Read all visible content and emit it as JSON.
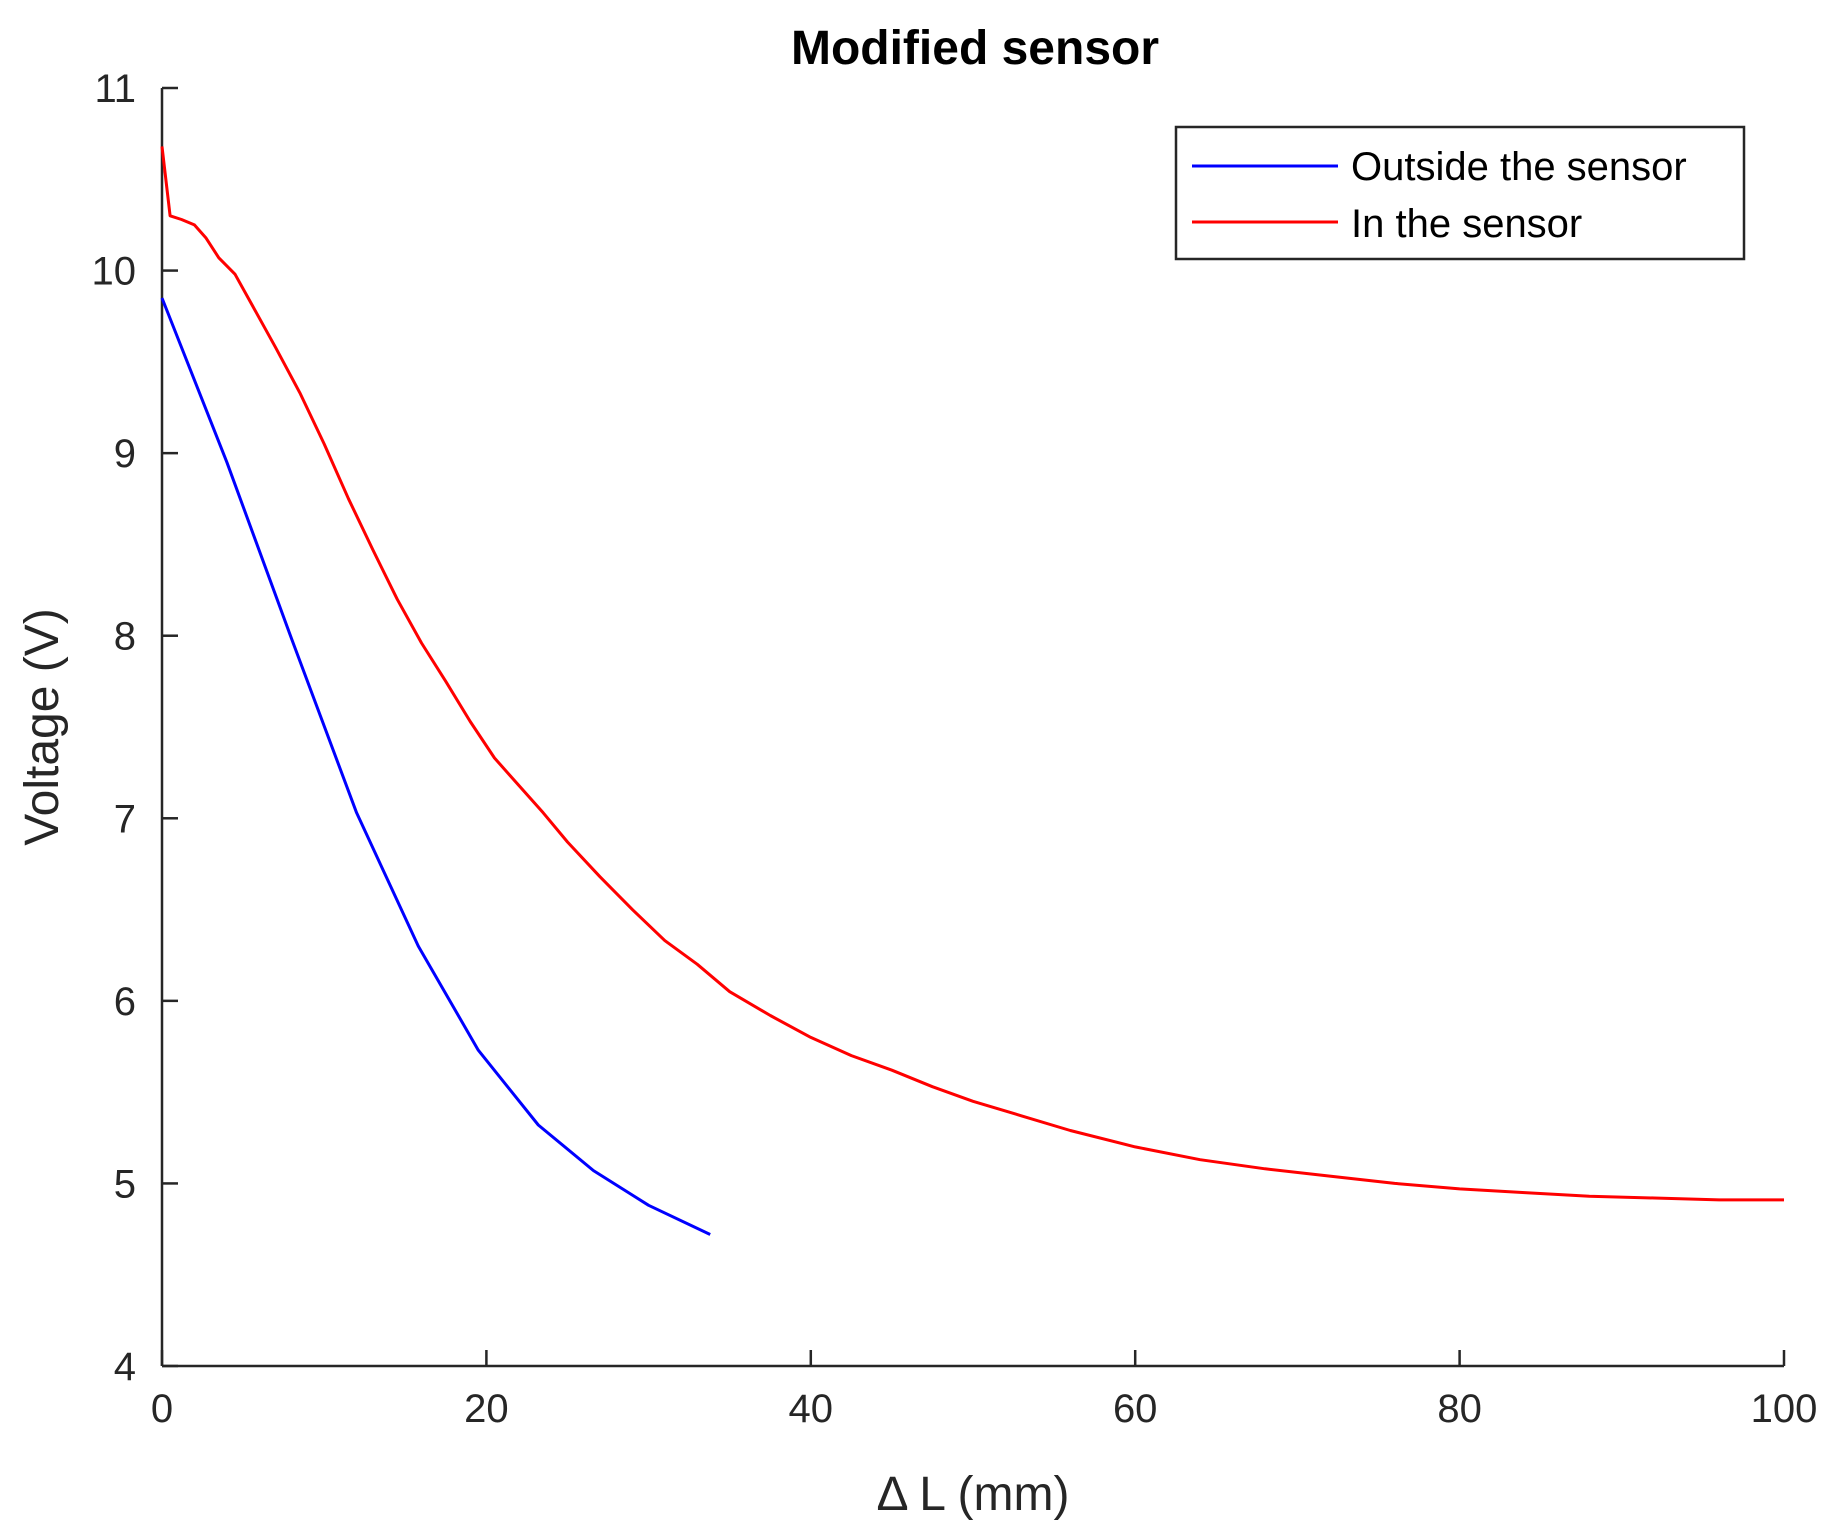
{
  "chart_data": {
    "type": "line",
    "title": "Modified sensor",
    "xlabel": "Δ L (mm)",
    "ylabel": "Voltage (V)",
    "xlim": [
      0,
      100
    ],
    "ylim": [
      4,
      11
    ],
    "xticks": [
      0,
      20,
      40,
      60,
      80,
      100
    ],
    "yticks": [
      4,
      5,
      6,
      7,
      8,
      9,
      10,
      11
    ],
    "grid": false,
    "legend_position": "top-right",
    "series": [
      {
        "name": "Outside the sensor",
        "color": "#0000ff",
        "x": [
          0,
          4,
          8,
          12,
          15.8,
          19.5,
          23.2,
          26.6,
          30,
          33.8
        ],
        "y": [
          9.85,
          8.95,
          7.98,
          7.03,
          6.3,
          5.73,
          5.32,
          5.07,
          4.88,
          4.72
        ]
      },
      {
        "name": "In the sensor",
        "color": "#ff0000",
        "x": [
          0,
          0.5,
          1.2,
          2,
          2.7,
          3.5,
          4.5,
          5.5,
          7,
          8.5,
          10,
          11.5,
          13,
          14.5,
          16,
          17.5,
          19,
          20.5,
          22,
          23.5,
          25,
          27,
          29,
          31,
          33,
          35,
          37.5,
          40,
          42.5,
          45,
          47.5,
          50,
          53,
          56,
          60,
          64,
          68,
          72,
          76,
          80,
          84,
          88,
          92,
          96,
          100
        ],
        "y": [
          10.68,
          10.3,
          10.28,
          10.25,
          10.18,
          10.07,
          9.98,
          9.82,
          9.58,
          9.33,
          9.05,
          8.75,
          8.47,
          8.2,
          7.96,
          7.75,
          7.53,
          7.33,
          7.18,
          7.03,
          6.87,
          6.68,
          6.5,
          6.33,
          6.2,
          6.05,
          5.92,
          5.8,
          5.7,
          5.62,
          5.53,
          5.45,
          5.37,
          5.29,
          5.2,
          5.13,
          5.08,
          5.04,
          5.0,
          4.97,
          4.95,
          4.93,
          4.92,
          4.91,
          4.91
        ]
      }
    ]
  }
}
